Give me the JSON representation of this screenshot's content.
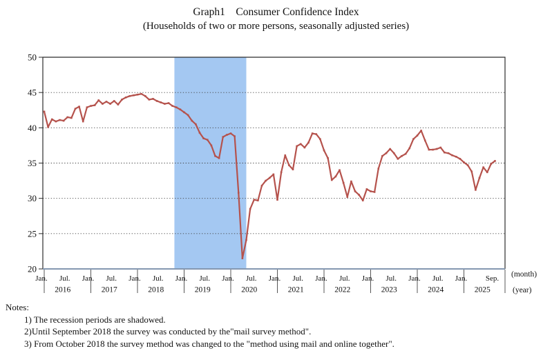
{
  "title": {
    "line1": "Graph1    Consumer Confidence Index",
    "line2": "(Households of two or more persons, seasonally adjusted series)"
  },
  "chart_data": {
    "type": "line",
    "title": "Graph1 Consumer Confidence Index (Households of two or more persons, seasonally adjusted series)",
    "x_start": "2016-01",
    "x_end": "2025-09",
    "x_unit_label": "(month)",
    "x_unit_label2": "(year)",
    "ylim": [
      20,
      50
    ],
    "yticks": [
      20,
      25,
      30,
      35,
      40,
      45,
      50
    ],
    "grid": "dotted horizontal lines at 25-45",
    "legend": "none",
    "series_name": "Consumer Confidence Index (seasonally adjusted)",
    "values": [
      42.3,
      40.1,
      41.2,
      40.9,
      41.1,
      41.0,
      41.5,
      41.4,
      42.7,
      43.0,
      40.9,
      42.9,
      43.1,
      43.2,
      43.9,
      43.4,
      43.7,
      43.4,
      43.8,
      43.3,
      44.0,
      44.3,
      44.5,
      44.6,
      44.7,
      44.8,
      44.5,
      44.0,
      44.1,
      43.8,
      43.6,
      43.4,
      43.5,
      43.1,
      42.9,
      42.6,
      42.2,
      41.8,
      41.0,
      40.5,
      39.3,
      38.5,
      38.3,
      37.5,
      36.0,
      35.7,
      38.7,
      39.0,
      39.2,
      38.8,
      30.8,
      21.5,
      24.1,
      28.5,
      29.8,
      29.7,
      31.8,
      32.5,
      32.9,
      33.4,
      29.8,
      33.7,
      36.1,
      34.7,
      34.1,
      37.4,
      37.7,
      37.2,
      37.9,
      39.2,
      39.1,
      38.4,
      36.8,
      35.7,
      32.6,
      33.1,
      34.0,
      32.2,
      30.2,
      32.4,
      31.0,
      30.5,
      29.7,
      31.3,
      31.0,
      30.9,
      34.2,
      36.0,
      36.4,
      37.0,
      36.4,
      35.6,
      36.0,
      36.3,
      37.1,
      38.4,
      38.9,
      39.6,
      38.2,
      36.9,
      36.9,
      37.0,
      37.2,
      36.5,
      36.4,
      36.1,
      35.9,
      35.6,
      35.1,
      34.7,
      33.8,
      31.2,
      32.9,
      34.4,
      33.7,
      34.9,
      35.3
    ],
    "month_labels": [
      {
        "m": "2016-01",
        "label": "Jan."
      },
      {
        "m": "2016-07",
        "label": "Jul."
      },
      {
        "m": "2017-01",
        "label": "Jan."
      },
      {
        "m": "2017-07",
        "label": "Jul."
      },
      {
        "m": "2018-01",
        "label": "Jan."
      },
      {
        "m": "2018-07",
        "label": "Jul."
      },
      {
        "m": "2019-01",
        "label": "Jan."
      },
      {
        "m": "2019-07",
        "label": "Jul."
      },
      {
        "m": "2020-01",
        "label": "Jan."
      },
      {
        "m": "2020-07",
        "label": "Jul."
      },
      {
        "m": "2021-01",
        "label": "Jan."
      },
      {
        "m": "2021-07",
        "label": "Jul."
      },
      {
        "m": "2022-01",
        "label": "Jan."
      },
      {
        "m": "2022-07",
        "label": "Jul."
      },
      {
        "m": "2023-01",
        "label": "Jan."
      },
      {
        "m": "2023-07",
        "label": "Jul."
      },
      {
        "m": "2024-01",
        "label": "Jan."
      },
      {
        "m": "2024-07",
        "label": "Jul."
      },
      {
        "m": "2025-01",
        "label": "Jan."
      },
      {
        "m": "2025-09",
        "label": "Sep."
      }
    ],
    "year_labels": [
      {
        "label": "2016",
        "anchor": "2016-07"
      },
      {
        "label": "2017",
        "anchor": "2017-07"
      },
      {
        "label": "2018",
        "anchor": "2018-07"
      },
      {
        "label": "2019",
        "anchor": "2019-07"
      },
      {
        "label": "2020",
        "anchor": "2020-07"
      },
      {
        "label": "2021",
        "anchor": "2021-07"
      },
      {
        "label": "2022",
        "anchor": "2022-07"
      },
      {
        "label": "2023",
        "anchor": "2023-07"
      },
      {
        "label": "2024",
        "anchor": "2024-07"
      },
      {
        "label": "2025",
        "anchor": "2025-07"
      }
    ],
    "recession_band": {
      "from": "2018-11",
      "to": "2020-05"
    },
    "colors": {
      "line": "#b5524c",
      "recession_band": "#a4c8f2",
      "x_axis_line": "#8497b0",
      "plot_border": "#2b2b2b",
      "gridline": "#404040"
    }
  },
  "notes": {
    "heading": "Notes:",
    "items": [
      "1) The recession periods are shadowed.",
      "2)Until September 2018 the survey was conducted by the\"mail survey method\".",
      "3) From October 2018 the survey method was changed to the \"method using mail and online together\"."
    ]
  }
}
